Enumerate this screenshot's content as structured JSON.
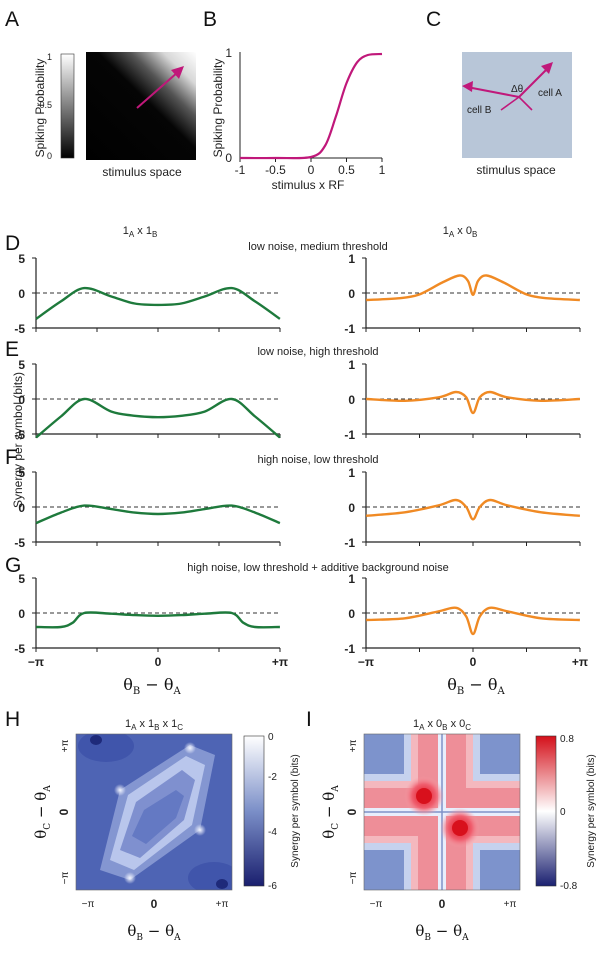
{
  "panel_letters": {
    "A": "A",
    "B": "B",
    "C": "C",
    "D": "D",
    "E": "E",
    "F": "F",
    "G": "G",
    "H": "H",
    "I": "I"
  },
  "panelA": {
    "ylabel": "Spiking Probability",
    "xlabel": "stimulus space",
    "colorbar_ticks": [
      "1",
      "0.5",
      "0"
    ]
  },
  "panelB": {
    "ylabel": "Spiking Probability",
    "xlabel": "stimulus x RF",
    "xticks": [
      "-1",
      "-0.5",
      "0",
      "0.5",
      "1"
    ],
    "yticks": [
      "0",
      "1"
    ]
  },
  "panelC": {
    "xlabel": "stimulus space",
    "cellA": "cell A",
    "cellB": "cell B",
    "angle": "Δθ"
  },
  "columns": {
    "left_title_a": "1",
    "left_sub_a": "A",
    "left_x": " x ",
    "left_title_b": "1",
    "left_sub_b": "B",
    "right_title_a": "1",
    "right_sub_a": "A",
    "right_x": " x ",
    "right_title_b": "0",
    "right_sub_b": "B"
  },
  "row_titles": {
    "D": "low noise, medium threshold",
    "E": "low noise, high threshold",
    "F": "high noise, low threshold",
    "G": "high noise, low threshold + additive background noise"
  },
  "shared_ylabel": "Synergy  per symbol (bits)",
  "left_yticks": [
    "5",
    "0",
    "-5"
  ],
  "right_yticks": [
    "1",
    "0",
    "-1"
  ],
  "xticks": [
    "−π",
    "0",
    "+π"
  ],
  "xlabel_main": "θ",
  "xlabel_sub1": "B",
  "xlabel_mid": " − θ",
  "xlabel_sub2": "A",
  "panelH": {
    "title": "1A x 1B x 1C",
    "colorbar_ticks": [
      "0",
      "-2",
      "-4",
      "-6"
    ],
    "colorbar_label": "Synergy  per symbol (bits)",
    "ylabel_main": "θ",
    "ylabel_sub1": "C",
    "ylabel_mid": " − θ",
    "ylabel_sub2": "A",
    "xticks": [
      "−π",
      "0",
      "+π"
    ],
    "yticks": [
      "+π",
      "0",
      "−π"
    ]
  },
  "panelI": {
    "title": "1A x 0B x 0C",
    "colorbar_ticks": [
      "0.8",
      "0",
      "-0.8"
    ],
    "colorbar_label": "Synergy  per symbol (bits)",
    "xticks": [
      "−π",
      "0",
      "+π"
    ],
    "yticks": [
      "+π",
      "0",
      "−π"
    ]
  },
  "colors": {
    "green": "#1e7a3c",
    "orange": "#f08a24",
    "magenta": "#c0187a",
    "panelC_bg": "#b8c6d8"
  },
  "chart_data": [
    {
      "type": "heatmap",
      "id": "A",
      "description_values": "spiking probability rises toward upper-right",
      "zlim": [
        0,
        1
      ]
    },
    {
      "type": "line",
      "id": "B",
      "x": [
        -1,
        -0.5,
        0,
        0.2,
        0.35,
        0.5,
        0.65,
        0.8,
        1
      ],
      "y": [
        0,
        0,
        0.01,
        0.12,
        0.4,
        0.72,
        0.92,
        0.99,
        1
      ],
      "xlim": [
        -1,
        1
      ],
      "ylim": [
        0,
        1
      ]
    },
    {
      "type": "line",
      "id": "D-left",
      "x": [
        -3.14,
        -2.5,
        -1.9,
        -1.2,
        -0.6,
        0,
        0.6,
        1.2,
        1.9,
        2.5,
        3.14
      ],
      "y": [
        -3.7,
        -1.2,
        0.7,
        -0.5,
        -1.5,
        -1.7,
        -1.5,
        -0.5,
        0.7,
        -1.2,
        -3.7
      ],
      "ylim": [
        -5,
        5
      ]
    },
    {
      "type": "line",
      "id": "D-right",
      "x": [
        -3.14,
        -2.2,
        -1.6,
        -0.9,
        -0.4,
        -0.15,
        0,
        0.15,
        0.4,
        0.9,
        1.6,
        2.2,
        3.14
      ],
      "y": [
        -0.2,
        -0.15,
        -0.05,
        0.3,
        0.5,
        0.35,
        -0.05,
        0.35,
        0.5,
        0.3,
        -0.05,
        -0.15,
        -0.2
      ],
      "ylim": [
        -1,
        1
      ]
    },
    {
      "type": "line",
      "id": "E-left",
      "x": [
        -3.14,
        -2.5,
        -1.9,
        -1.2,
        -0.6,
        0,
        0.6,
        1.2,
        1.9,
        2.5,
        3.14
      ],
      "y": [
        -5.5,
        -2.5,
        0,
        -1.8,
        -2.4,
        -2.6,
        -2.4,
        -1.8,
        0,
        -2.5,
        -5.5
      ],
      "ylim": [
        -5,
        5
      ]
    },
    {
      "type": "line",
      "id": "E-right",
      "x": [
        -3.14,
        -2,
        -1,
        -0.5,
        -0.2,
        0,
        0.2,
        0.5,
        1,
        2,
        3.14
      ],
      "y": [
        0,
        -0.05,
        0.05,
        0.2,
        0.05,
        -0.4,
        0.05,
        0.2,
        0.05,
        -0.05,
        0
      ],
      "ylim": [
        -1,
        1
      ]
    },
    {
      "type": "line",
      "id": "F-left",
      "x": [
        -3.14,
        -2.5,
        -1.9,
        -1.2,
        -0.6,
        0,
        0.6,
        1.2,
        1.9,
        2.5,
        3.14
      ],
      "y": [
        -2.3,
        -0.8,
        0.2,
        -0.3,
        -0.8,
        -1,
        -0.8,
        -0.3,
        0.2,
        -0.8,
        -2.3
      ],
      "ylim": [
        -5,
        5
      ]
    },
    {
      "type": "line",
      "id": "F-right",
      "x": [
        -3.14,
        -2,
        -1,
        -0.5,
        -0.2,
        0,
        0.2,
        0.5,
        1,
        2,
        3.14
      ],
      "y": [
        -0.25,
        -0.15,
        0.05,
        0.2,
        0,
        -0.35,
        0,
        0.2,
        0.05,
        -0.15,
        -0.25
      ],
      "ylim": [
        -1,
        1
      ]
    },
    {
      "type": "line",
      "id": "G-left",
      "x": [
        -3.14,
        -2.5,
        -2.2,
        -1.9,
        -1.2,
        -0.6,
        0,
        0.6,
        1.2,
        1.9,
        2.2,
        2.5,
        3.14
      ],
      "y": [
        -2,
        -2,
        -1.4,
        0,
        -0.1,
        -0.3,
        -0.4,
        -0.3,
        -0.1,
        0,
        -1.4,
        -2,
        -2
      ],
      "ylim": [
        -5,
        5
      ]
    },
    {
      "type": "line",
      "id": "G-right",
      "x": [
        -3.14,
        -2,
        -1,
        -0.5,
        -0.2,
        0,
        0.2,
        0.5,
        1,
        2,
        3.14
      ],
      "y": [
        -0.2,
        -0.15,
        0.05,
        0.15,
        -0.1,
        -0.6,
        -0.1,
        0.15,
        0.05,
        -0.15,
        -0.2
      ],
      "ylim": [
        -1,
        1
      ]
    },
    {
      "type": "heatmap",
      "id": "H",
      "zlim": [
        -6,
        0
      ]
    },
    {
      "type": "heatmap",
      "id": "I",
      "zlim": [
        -0.8,
        0.8
      ]
    }
  ]
}
